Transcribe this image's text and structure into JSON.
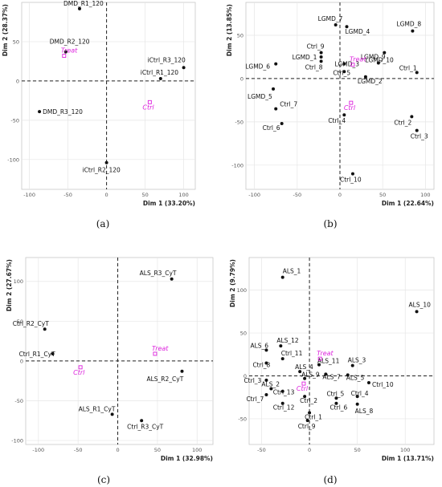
{
  "chart_data": [
    {
      "type": "scatter",
      "panel_label": "(a)",
      "xlabel": "Dim 1 (33.20%)",
      "ylabel": "Dim 2 (28.37%)",
      "xlim": [
        -110,
        115
      ],
      "ylim": [
        -138,
        100
      ],
      "xticks": [
        -100,
        -50,
        0,
        50,
        100
      ],
      "yticks": [
        -100,
        -50,
        0,
        50
      ],
      "grid": true,
      "points": [
        {
          "label": "DMD_R1_120",
          "x": -35,
          "y": 92
        },
        {
          "label": "DMD_R2_120",
          "x": -53,
          "y": 37
        },
        {
          "label": "DMD_R3_120",
          "x": -87,
          "y": -39
        },
        {
          "label": "iCtrl_R3_120",
          "x": 100,
          "y": 17
        },
        {
          "label": "iCtrl_R1_120",
          "x": 70,
          "y": 3
        },
        {
          "label": "iCtrl_R2_120",
          "x": 0,
          "y": -104
        }
      ],
      "centroids": [
        {
          "label": "Treat",
          "x": -55,
          "y": 32
        },
        {
          "label": "Ctrl",
          "x": 56,
          "y": -27
        }
      ]
    },
    {
      "type": "scatter",
      "panel_label": "(b)",
      "xlabel": "Dim 1 (22.64%)",
      "ylabel": "Dim 2 (13.85%)",
      "xlim": [
        -110,
        110
      ],
      "ylim": [
        -128,
        88
      ],
      "xticks": [
        -100,
        -50,
        0,
        50,
        100
      ],
      "yticks": [
        -100,
        -50,
        0,
        50
      ],
      "grid": true,
      "points": [
        {
          "label": "LGMD_7",
          "x": -5,
          "y": 62
        },
        {
          "label": "LGMD_4",
          "x": 8,
          "y": 60
        },
        {
          "label": "LGMD_8",
          "x": 85,
          "y": 55
        },
        {
          "label": "Ctrl_9",
          "x": -22,
          "y": 30
        },
        {
          "label": "LGMD_1",
          "x": -22,
          "y": 25
        },
        {
          "label": "Ctrl_8",
          "x": -22,
          "y": 20
        },
        {
          "label": "LGMD_6",
          "x": -75,
          "y": 17
        },
        {
          "label": "LGMD_10",
          "x": 52,
          "y": 30
        },
        {
          "label": "LGMD_3",
          "x": 5,
          "y": 17
        },
        {
          "label": "LGMD_9",
          "x": 45,
          "y": 18
        },
        {
          "label": "Ctrl_5",
          "x": 5,
          "y": 8
        },
        {
          "label": "LGMD_2",
          "x": 30,
          "y": 2
        },
        {
          "label": "Ctrl_1",
          "x": 90,
          "y": 7
        },
        {
          "label": "LGMD_5",
          "x": -78,
          "y": -12
        },
        {
          "label": "Ctrl_7",
          "x": -75,
          "y": -35
        },
        {
          "label": "Ctrl_6",
          "x": -68,
          "y": -52
        },
        {
          "label": "Ctrl_4",
          "x": 5,
          "y": -42
        },
        {
          "label": "Ctrl_2",
          "x": 84,
          "y": -44
        },
        {
          "label": "Ctrl_3",
          "x": 90,
          "y": -60
        },
        {
          "label": "Ctrl_10",
          "x": 15,
          "y": -110
        }
      ],
      "centroids": [
        {
          "label": "Treat",
          "x": 15,
          "y": 16
        },
        {
          "label": "Ctrl",
          "x": 13,
          "y": -28
        }
      ]
    },
    {
      "type": "scatter",
      "panel_label": "(c)",
      "xlabel": "Dim 1 (32.98%)",
      "ylabel": "Dim 2 (27.67%)",
      "xlim": [
        -116,
        120
      ],
      "ylim": [
        -105,
        130
      ],
      "xticks": [
        -100,
        -50,
        0,
        50,
        100
      ],
      "yticks": [
        -100,
        -50,
        0,
        50,
        100
      ],
      "grid": true,
      "points": [
        {
          "label": "ALS_R3_CyT",
          "x": 68,
          "y": 103
        },
        {
          "label": "Ctrl_R2_CyT",
          "x": -92,
          "y": 40
        },
        {
          "label": "Ctrl_R1_CyT",
          "x": -82,
          "y": 9
        },
        {
          "label": "ALS_R2_CyT",
          "x": 81,
          "y": -13
        },
        {
          "label": "ALS_R1_CyT",
          "x": -7,
          "y": -67
        },
        {
          "label": "Ctrl_R3_CyT",
          "x": 30,
          "y": -75
        }
      ],
      "centroids": [
        {
          "label": "Treat",
          "x": 47,
          "y": 9
        },
        {
          "label": "Ctrl",
          "x": -47,
          "y": -8
        }
      ]
    },
    {
      "type": "scatter",
      "panel_label": "(d)",
      "xlabel": "Dim 1 (13.71%)",
      "ylabel": "Dim 2 (9.79%)",
      "xlim": [
        -63,
        130
      ],
      "ylim": [
        -80,
        138
      ],
      "xticks": [
        -50,
        0,
        50,
        100
      ],
      "yticks": [
        -50,
        0,
        50,
        100
      ],
      "grid": true,
      "points": [
        {
          "label": "ALS_1",
          "x": -28,
          "y": 115
        },
        {
          "label": "ALS_10",
          "x": 112,
          "y": 75
        },
        {
          "label": "ALS_6",
          "x": -45,
          "y": 30
        },
        {
          "label": "ALS_12",
          "x": -30,
          "y": 35
        },
        {
          "label": "Ctrl_11",
          "x": -28,
          "y": 20
        },
        {
          "label": "Ctrl_8",
          "x": -45,
          "y": 15
        },
        {
          "label": "ALS_4",
          "x": -10,
          "y": 5
        },
        {
          "label": "ALS_11",
          "x": 10,
          "y": 13
        },
        {
          "label": "ALS_3",
          "x": 45,
          "y": 12
        },
        {
          "label": "ALS_7",
          "x": 17,
          "y": 2
        },
        {
          "label": "ALS_5",
          "x": 40,
          "y": 1
        },
        {
          "label": "Ctrl_3",
          "x": -45,
          "y": -5
        },
        {
          "label": "ALS_9",
          "x": -5,
          "y": -3
        },
        {
          "label": "ALS_2",
          "x": -40,
          "y": -15
        },
        {
          "label": "Ctrl_13",
          "x": -28,
          "y": -18
        },
        {
          "label": "Ctrl_10",
          "x": 62,
          "y": -8
        },
        {
          "label": "Ctrl_2",
          "x": -5,
          "y": -24
        },
        {
          "label": "Ctrl_5",
          "x": 28,
          "y": -26
        },
        {
          "label": "Ctrl_4",
          "x": 50,
          "y": -24
        },
        {
          "label": "Ctrl_7",
          "x": -45,
          "y": -22
        },
        {
          "label": "Ctrl_12",
          "x": -28,
          "y": -32
        },
        {
          "label": "Ctrl_6",
          "x": 28,
          "y": -32
        },
        {
          "label": "ALS_8",
          "x": 50,
          "y": -33
        },
        {
          "label": "Ctrl_1",
          "x": 0,
          "y": -43
        },
        {
          "label": "Ctrl_9",
          "x": -2,
          "y": -52
        }
      ],
      "centroids": [
        {
          "label": "Treat",
          "x": 11,
          "y": 20
        },
        {
          "label": "Ctrl",
          "x": -6,
          "y": -9
        }
      ]
    }
  ],
  "colors": {
    "point": "#111111",
    "centroid": "#dd22dd",
    "grid": "#e6e6e6",
    "frame": "#c8c8c8",
    "axis_ref": "#222222"
  }
}
